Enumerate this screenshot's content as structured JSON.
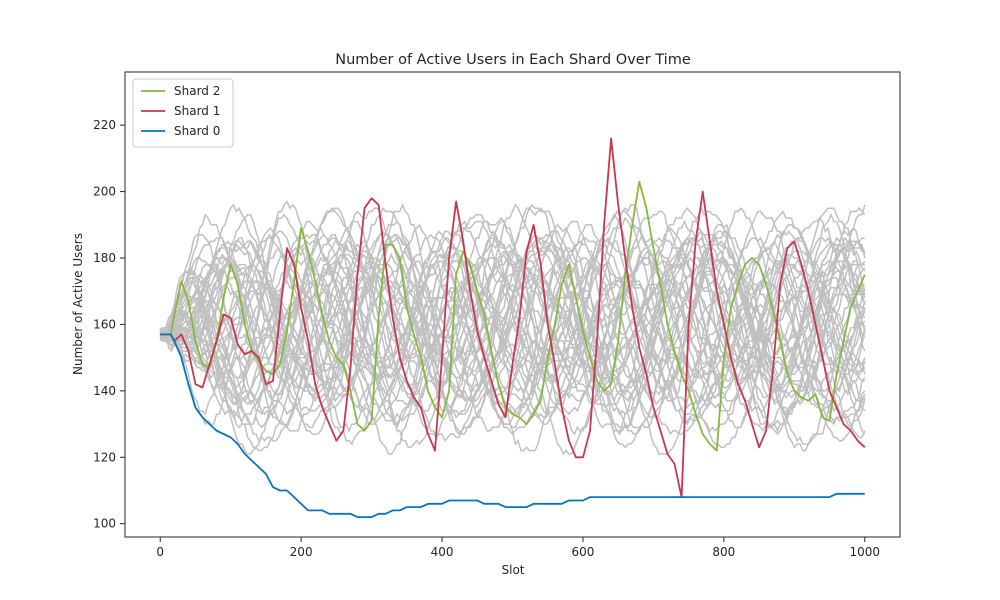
{
  "chart_data": {
    "type": "line",
    "title": "Number of Active Users in Each Shard Over Time",
    "xlabel": "Slot",
    "ylabel": "Number of Active Users",
    "xlim": [
      -50,
      1050
    ],
    "ylim": [
      96,
      236
    ],
    "xticks": [
      0,
      200,
      400,
      600,
      800,
      1000
    ],
    "yticks": [
      100,
      120,
      140,
      160,
      180,
      200,
      220
    ],
    "grid": false,
    "legend_position": "top-left",
    "colors": {
      "background_series": "#c0c0c0",
      "shard_2": "#86b93e",
      "shard_1": "#c8374f",
      "shard_0": "#0a74b8",
      "axis": "#262626"
    },
    "legend": [
      {
        "name": "Shard 2",
        "color": "#86b93e"
      },
      {
        "name": "Shard 1",
        "color": "#c8374f"
      },
      {
        "name": "Shard 0",
        "color": "#0a74b8"
      }
    ],
    "background_series_count": 45,
    "background_start_value": 157,
    "series": [
      {
        "name": "Shard 2",
        "color": "#86b93e",
        "x": [
          0,
          15,
          20,
          30,
          40,
          50,
          60,
          70,
          80,
          90,
          100,
          110,
          120,
          130,
          140,
          150,
          160,
          170,
          180,
          190,
          200,
          210,
          220,
          230,
          240,
          250,
          260,
          270,
          280,
          290,
          300,
          310,
          320,
          330,
          340,
          350,
          360,
          370,
          380,
          390,
          400,
          410,
          420,
          430,
          440,
          450,
          460,
          470,
          480,
          490,
          500,
          510,
          520,
          530,
          540,
          550,
          560,
          570,
          580,
          590,
          600,
          610,
          620,
          630,
          640,
          650,
          660,
          670,
          680,
          690,
          700,
          710,
          720,
          730,
          740,
          750,
          760,
          770,
          780,
          790,
          800,
          810,
          820,
          830,
          840,
          850,
          860,
          870,
          880,
          890,
          900,
          910,
          920,
          930,
          940,
          950,
          960,
          970,
          980,
          990,
          1000
        ],
        "values": [
          157,
          157,
          163,
          173,
          167,
          155,
          148,
          147,
          155,
          168,
          178,
          172,
          160,
          152,
          149,
          146,
          145,
          148,
          158,
          173,
          189,
          182,
          173,
          163,
          155,
          150,
          148,
          140,
          130,
          128,
          131,
          162,
          184,
          184,
          180,
          165,
          157,
          150,
          140,
          135,
          132,
          140,
          175,
          182,
          178,
          170,
          163,
          152,
          142,
          135,
          133,
          132,
          130,
          133,
          137,
          150,
          160,
          172,
          178,
          168,
          158,
          150,
          143,
          140,
          142,
          155,
          175,
          190,
          203,
          195,
          183,
          172,
          160,
          152,
          145,
          140,
          133,
          127,
          124,
          122,
          150,
          165,
          172,
          178,
          180,
          178,
          172,
          164,
          155,
          145,
          140,
          138,
          137,
          139,
          132,
          131,
          145,
          155,
          165,
          170,
          175
        ]
      },
      {
        "name": "Shard 1",
        "color": "#c8374f",
        "x": [
          0,
          15,
          20,
          30,
          40,
          50,
          60,
          70,
          80,
          90,
          100,
          110,
          120,
          130,
          140,
          150,
          160,
          170,
          180,
          190,
          200,
          210,
          220,
          230,
          240,
          250,
          260,
          270,
          280,
          290,
          300,
          310,
          320,
          330,
          340,
          350,
          360,
          370,
          380,
          390,
          400,
          410,
          420,
          430,
          440,
          450,
          460,
          470,
          480,
          490,
          500,
          510,
          520,
          530,
          540,
          550,
          560,
          570,
          580,
          590,
          600,
          610,
          620,
          630,
          640,
          650,
          660,
          670,
          680,
          690,
          700,
          710,
          720,
          730,
          740,
          750,
          760,
          770,
          780,
          790,
          800,
          810,
          820,
          830,
          840,
          850,
          860,
          870,
          880,
          890,
          900,
          910,
          920,
          930,
          940,
          950,
          960,
          970,
          980,
          990,
          1000
        ],
        "values": [
          157,
          157,
          155,
          157,
          152,
          142,
          141,
          148,
          155,
          163,
          162,
          154,
          151,
          152,
          150,
          142,
          143,
          163,
          183,
          178,
          165,
          155,
          142,
          135,
          130,
          125,
          128,
          147,
          175,
          195,
          198,
          196,
          178,
          162,
          150,
          143,
          138,
          135,
          127,
          122,
          150,
          180,
          197,
          185,
          170,
          158,
          150,
          143,
          136,
          132,
          148,
          162,
          182,
          190,
          178,
          160,
          148,
          135,
          125,
          120,
          120,
          128,
          155,
          190,
          216,
          196,
          180,
          165,
          153,
          145,
          135,
          128,
          121,
          118,
          108,
          160,
          185,
          200,
          185,
          170,
          160,
          150,
          142,
          137,
          130,
          123,
          128,
          147,
          172,
          183,
          185,
          178,
          170,
          160,
          150,
          140,
          135,
          130,
          128,
          125,
          123
        ]
      },
      {
        "name": "Shard 0",
        "color": "#0a74b8",
        "x": [
          0,
          15,
          20,
          30,
          40,
          50,
          60,
          70,
          80,
          90,
          100,
          110,
          120,
          130,
          140,
          150,
          160,
          170,
          180,
          190,
          200,
          210,
          220,
          230,
          240,
          250,
          260,
          270,
          280,
          290,
          300,
          310,
          320,
          330,
          340,
          350,
          360,
          370,
          380,
          390,
          400,
          410,
          420,
          430,
          440,
          450,
          460,
          470,
          480,
          490,
          500,
          510,
          520,
          530,
          540,
          550,
          560,
          570,
          580,
          590,
          600,
          610,
          620,
          630,
          640,
          650,
          660,
          670,
          680,
          690,
          700,
          710,
          720,
          730,
          740,
          750,
          760,
          770,
          780,
          790,
          800,
          810,
          820,
          830,
          840,
          850,
          860,
          870,
          880,
          890,
          900,
          910,
          920,
          930,
          940,
          950,
          960,
          970,
          980,
          990,
          1000
        ],
        "values": [
          157,
          157,
          155,
          150,
          142,
          135,
          132,
          130,
          128,
          127,
          126,
          124,
          121,
          119,
          117,
          115,
          111,
          110,
          110,
          108,
          106,
          104,
          104,
          104,
          103,
          103,
          103,
          103,
          102,
          102,
          102,
          103,
          103,
          104,
          104,
          105,
          105,
          105,
          106,
          106,
          106,
          107,
          107,
          107,
          107,
          107,
          106,
          106,
          106,
          105,
          105,
          105,
          105,
          106,
          106,
          106,
          106,
          106,
          107,
          107,
          107,
          108,
          108,
          108,
          108,
          108,
          108,
          108,
          108,
          108,
          108,
          108,
          108,
          108,
          108,
          108,
          108,
          108,
          108,
          108,
          108,
          108,
          108,
          108,
          108,
          108,
          108,
          108,
          108,
          108,
          108,
          108,
          108,
          108,
          108,
          108,
          109,
          109,
          109,
          109,
          109
        ]
      }
    ]
  }
}
